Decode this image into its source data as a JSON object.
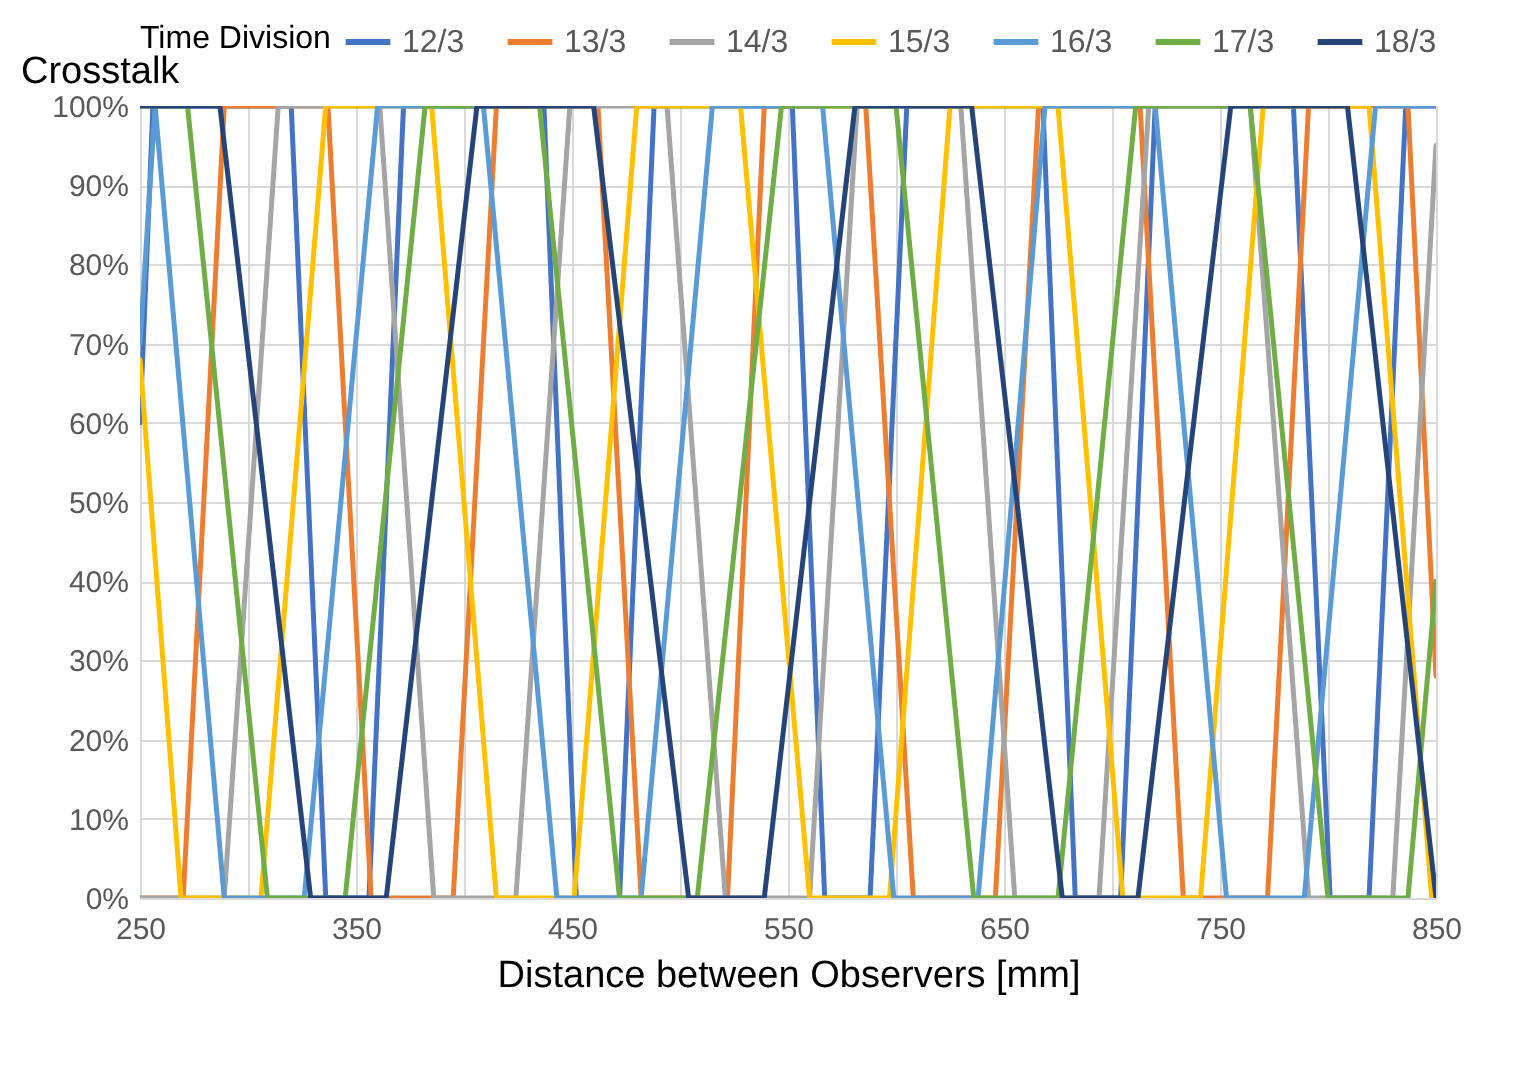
{
  "chart_data": {
    "type": "line",
    "xlabel": "Distance between Observers [mm]",
    "ylabel": "Crosstalk",
    "legend_title": "Time Division",
    "legend": "top",
    "grid": true,
    "xlim": [
      250,
      850
    ],
    "ylim": [
      0,
      100
    ],
    "xticks": [
      250,
      {
        "value": 300,
        "label": null
      },
      350,
      {
        "value": 400,
        "label": null
      },
      450,
      {
        "value": 500,
        "label": null
      },
      550,
      {
        "value": 600,
        "label": null
      },
      650,
      {
        "value": 700,
        "label": null
      },
      750,
      {
        "value": 800,
        "label": null
      },
      850
    ],
    "yticks": [
      {
        "value": 0,
        "label": "0%"
      },
      {
        "value": 10,
        "label": "10%"
      },
      {
        "value": 20,
        "label": "20%"
      },
      {
        "value": 30,
        "label": "30%"
      },
      {
        "value": 40,
        "label": "40%"
      },
      {
        "value": 50,
        "label": "50%"
      },
      {
        "value": 60,
        "label": "60%"
      },
      {
        "value": 70,
        "label": "70%"
      },
      {
        "value": 80,
        "label": "80%"
      },
      {
        "value": 90,
        "label": "90%"
      },
      {
        "value": 100,
        "label": "100%"
      }
    ],
    "series": [
      {
        "name": "12/3",
        "color": "#4472c4",
        "x": [
          250,
          256,
          320,
          336,
          356,
          372,
          437,
          452,
          472,
          488,
          552,
          567,
          588,
          605,
          668,
          683,
          704,
          720,
          784,
          801,
          819,
          836,
          850
        ],
        "values": [
          60,
          100,
          100,
          0,
          0,
          100,
          100,
          0,
          0,
          100,
          100,
          0,
          0,
          100,
          100,
          0,
          0,
          100,
          100,
          0,
          0,
          100,
          100
        ]
      },
      {
        "name": "13/3",
        "color": "#ed7d31",
        "x": [
          250,
          270,
          289,
          337,
          357,
          395,
          415,
          462,
          482,
          522,
          539,
          586,
          608,
          646,
          666,
          713,
          733,
          772,
          791,
          837,
          850
        ],
        "values": [
          0,
          0,
          100,
          100,
          0,
          0,
          100,
          100,
          0,
          0,
          100,
          100,
          0,
          0,
          100,
          100,
          0,
          0,
          100,
          100,
          28
        ]
      },
      {
        "name": "14/3",
        "color": "#a5a5a5",
        "x": [
          250,
          289,
          314,
          361,
          386,
          424,
          449,
          494,
          521,
          560,
          582,
          630,
          655,
          694,
          717,
          764,
          791,
          830,
          850
        ],
        "values": [
          0,
          0,
          100,
          100,
          0,
          0,
          100,
          100,
          0,
          0,
          100,
          100,
          0,
          0,
          100,
          100,
          0,
          0,
          95
        ]
      },
      {
        "name": "15/3",
        "color": "#ffc000",
        "x": [
          250,
          269,
          306,
          336,
          385,
          415,
          451,
          480,
          528,
          560,
          597,
          625,
          675,
          705,
          741,
          770,
          819,
          848,
          850
        ],
        "values": [
          68,
          0,
          0,
          100,
          100,
          0,
          0,
          100,
          100,
          0,
          0,
          100,
          100,
          0,
          0,
          100,
          100,
          0,
          0
        ]
      },
      {
        "name": "16/3",
        "color": "#5b9bd5",
        "x": [
          250,
          257,
          289,
          326,
          360,
          409,
          443,
          482,
          515,
          566,
          599,
          638,
          669,
          720,
          753,
          789,
          822,
          850
        ],
        "values": [
          70,
          100,
          0,
          0,
          100,
          100,
          0,
          0,
          100,
          100,
          0,
          0,
          100,
          100,
          0,
          0,
          100,
          100
        ]
      },
      {
        "name": "17/3",
        "color": "#70ad47",
        "x": [
          250,
          272,
          309,
          345,
          382,
          435,
          472,
          508,
          547,
          600,
          636,
          675,
          711,
          764,
          800,
          837,
          850
        ],
        "values": [
          100,
          100,
          0,
          0,
          100,
          100,
          0,
          0,
          100,
          100,
          0,
          0,
          100,
          100,
          0,
          0,
          40
        ]
      },
      {
        "name": "18/3",
        "color": "#264478",
        "x": [
          250,
          287,
          329,
          364,
          406,
          460,
          504,
          539,
          581,
          635,
          677,
          712,
          755,
          809,
          850
        ],
        "values": [
          100,
          100,
          0,
          0,
          100,
          100,
          0,
          0,
          100,
          100,
          0,
          0,
          100,
          100,
          0
        ]
      }
    ]
  }
}
